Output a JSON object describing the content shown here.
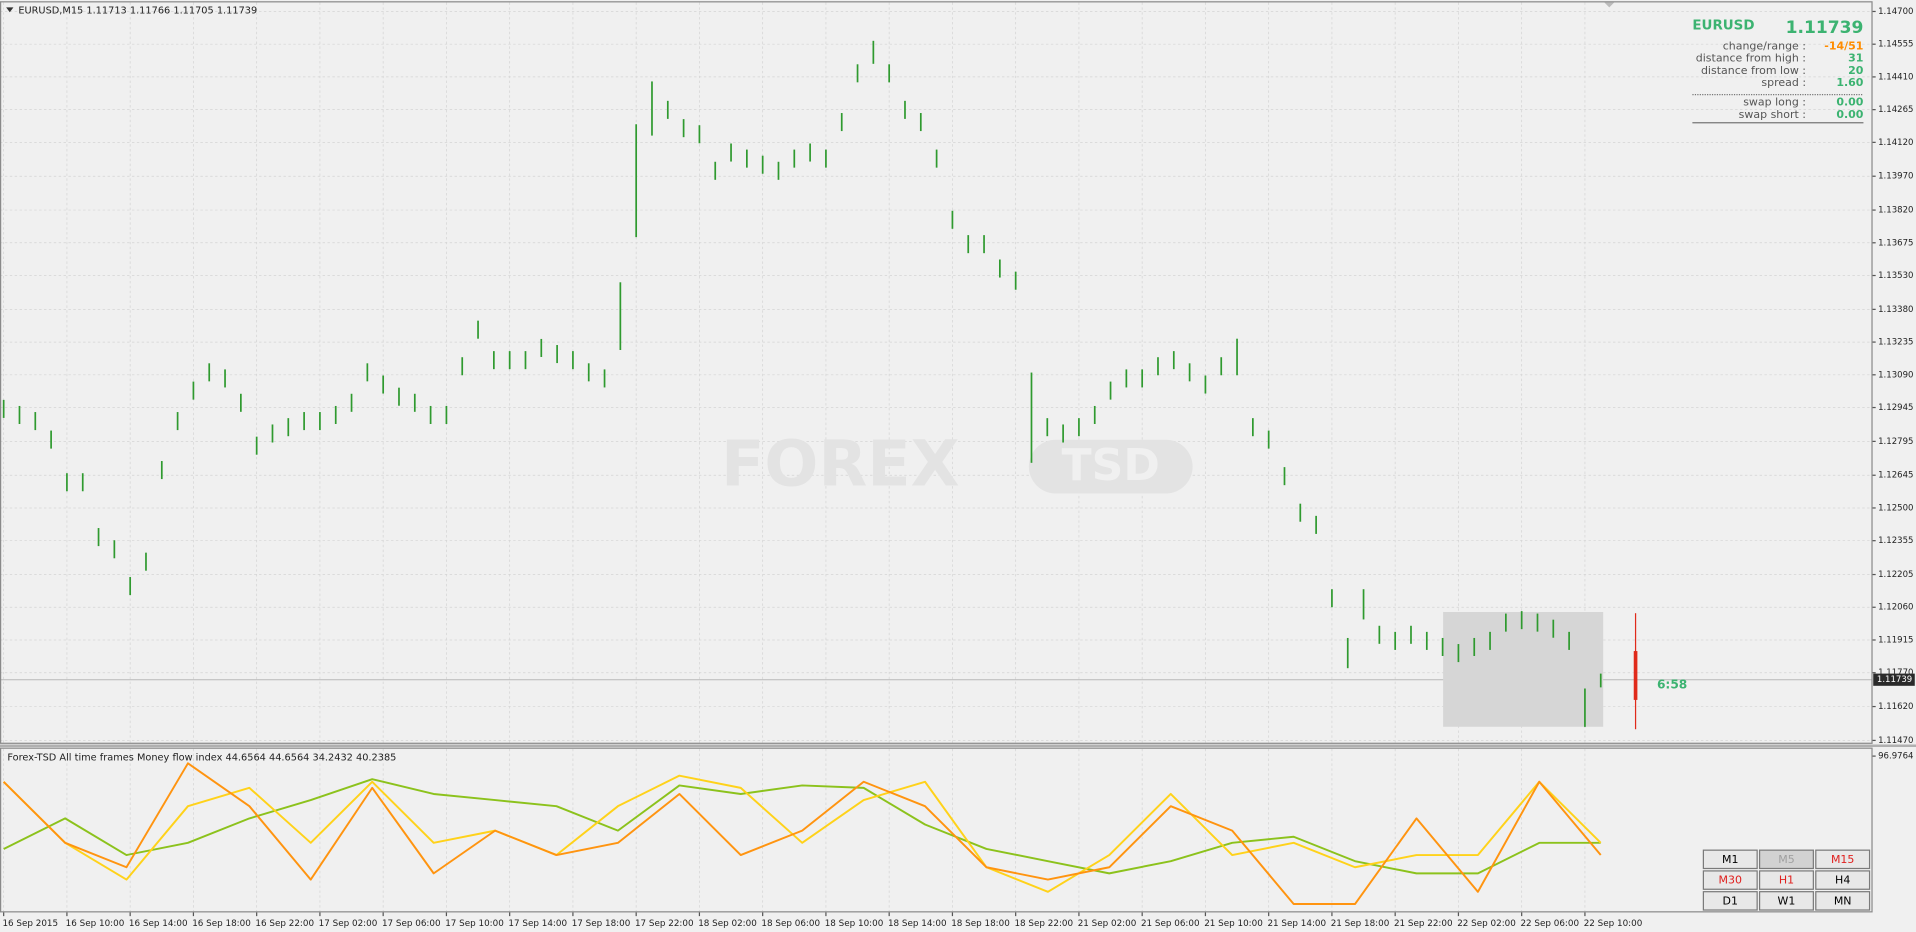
{
  "chart_data": [
    {
      "type": "ohlc",
      "title": "EURUSD,M15  1.11713 1.11766 1.11705 1.11739",
      "color": "#2f9a2f",
      "grid": true,
      "categories": [
        "16 Sep 2015",
        null,
        null,
        null,
        "16 Sep 10:00",
        null,
        null,
        null,
        "16 Sep 14:00",
        null,
        null,
        null,
        "16 Sep 18:00",
        null,
        null,
        null,
        "16 Sep 22:00",
        null,
        null,
        null,
        "17 Sep 02:00",
        null,
        null,
        null,
        "17 Sep 06:00",
        null,
        null,
        null,
        "17 Sep 10:00",
        null,
        null,
        null,
        "17 Sep 14:00",
        null,
        null,
        null,
        "17 Sep 18:00",
        null,
        null,
        null,
        "17 Sep 22:00",
        null,
        null,
        null,
        "18 Sep 02:00",
        null,
        null,
        null,
        "18 Sep 06:00",
        null,
        null,
        null,
        "18 Sep 10:00",
        null,
        null,
        null,
        "18 Sep 14:00",
        null,
        null,
        null,
        "18 Sep 18:00",
        null,
        null,
        null,
        "18 Sep 22:00",
        null,
        null,
        null,
        "21 Sep 02:00",
        null,
        null,
        null,
        "21 Sep 06:00",
        null,
        null,
        null,
        "21 Sep 10:00",
        null,
        null,
        null,
        "21 Sep 14:00",
        null,
        null,
        null,
        "21 Sep 18:00",
        null,
        null,
        null,
        "21 Sep 22:00",
        null,
        null,
        null,
        "22 Sep 02:00",
        null,
        null,
        null,
        "22 Sep 06:00",
        null,
        null,
        null,
        "22 Sep 10:00",
        null
      ],
      "high": [
        1.12979,
        1.12952,
        1.12925,
        1.12843,
        1.12654,
        1.12654,
        1.12411,
        1.12357,
        1.12194,
        1.12302,
        1.12708,
        1.12925,
        1.1306,
        1.13141,
        1.13114,
        1.13006,
        1.12816,
        1.1287,
        1.12898,
        1.12925,
        1.12925,
        1.12952,
        1.13006,
        1.13141,
        1.13087,
        1.13033,
        1.13006,
        1.12952,
        1.12952,
        1.13168,
        1.1333,
        1.13195,
        1.13195,
        1.13195,
        1.13249,
        1.13222,
        1.13195,
        1.13141,
        1.13114,
        1.135,
        1.142,
        1.1439,
        1.14304,
        1.14223,
        1.14196,
        1.14034,
        1.14115,
        1.14088,
        1.14061,
        1.14034,
        1.14088,
        1.14115,
        1.14088,
        1.1425,
        1.14466,
        1.1457,
        1.14466,
        1.14304,
        1.1425,
        1.14088,
        1.13817,
        1.13709,
        1.13709,
        1.13601,
        1.13547,
        1.131,
        1.12898,
        1.1287,
        1.12898,
        1.12952,
        1.1306,
        1.13114,
        1.13114,
        1.13168,
        1.13195,
        1.13141,
        1.13087,
        1.13168,
        1.1325,
        1.12898,
        1.12843,
        1.12681,
        1.12519,
        1.12465,
        1.1214,
        1.11924,
        1.1214,
        1.11978,
        1.11951,
        1.11978,
        1.11951,
        1.11924,
        1.11897,
        1.11924,
        1.11951,
        1.12032,
        1.12043,
        1.12032,
        1.12005,
        1.11951,
        1.117,
        1.11766
      ],
      "low": [
        1.12899,
        1.12872,
        1.12845,
        1.12763,
        1.12574,
        1.12574,
        1.12331,
        1.12277,
        1.12114,
        1.12222,
        1.12628,
        1.12845,
        1.1298,
        1.13061,
        1.13034,
        1.12926,
        1.12736,
        1.1279,
        1.12818,
        1.12845,
        1.12845,
        1.12872,
        1.12926,
        1.13061,
        1.13007,
        1.12953,
        1.12926,
        1.12872,
        1.12872,
        1.13088,
        1.1325,
        1.13115,
        1.13115,
        1.13115,
        1.13169,
        1.13142,
        1.13115,
        1.13061,
        1.13034,
        1.132,
        1.137,
        1.1415,
        1.14224,
        1.14143,
        1.14116,
        1.13954,
        1.14035,
        1.14008,
        1.13981,
        1.13954,
        1.14008,
        1.14035,
        1.14008,
        1.1417,
        1.14386,
        1.14468,
        1.14386,
        1.14224,
        1.1417,
        1.14008,
        1.13737,
        1.13629,
        1.13629,
        1.13521,
        1.13467,
        1.127,
        1.12818,
        1.1279,
        1.12818,
        1.12872,
        1.1298,
        1.13034,
        1.13034,
        1.13088,
        1.13115,
        1.13061,
        1.13007,
        1.13088,
        1.13088,
        1.12818,
        1.12763,
        1.12601,
        1.12439,
        1.12385,
        1.1206,
        1.1179,
        1.12006,
        1.11898,
        1.11871,
        1.11898,
        1.11871,
        1.11844,
        1.11817,
        1.11844,
        1.11871,
        1.11952,
        1.11963,
        1.11952,
        1.11925,
        1.11871,
        1.1153,
        1.11705
      ],
      "current_price": 1.11739,
      "ylim": [
        1.1146,
        1.1474
      ],
      "yticks": [
        {
          "value": 1.147,
          "label": "1.14700"
        },
        {
          "value": 1.14555,
          "label": "1.14555"
        },
        {
          "value": 1.1441,
          "label": "1.14410"
        },
        {
          "value": 1.14265,
          "label": "1.14265"
        },
        {
          "value": 1.1412,
          "label": "1.14120"
        },
        {
          "value": 1.1397,
          "label": "1.13970"
        },
        {
          "value": 1.1382,
          "label": "1.13820"
        },
        {
          "value": 1.13675,
          "label": "1.13675"
        },
        {
          "value": 1.1353,
          "label": "1.13530"
        },
        {
          "value": 1.1338,
          "label": "1.13380"
        },
        {
          "value": 1.13235,
          "label": "1.13235"
        },
        {
          "value": 1.1309,
          "label": "1.13090"
        },
        {
          "value": 1.12945,
          "label": "1.12945"
        },
        {
          "value": 1.12795,
          "label": "1.12795"
        },
        {
          "value": 1.12645,
          "label": "1.12645"
        },
        {
          "value": 1.125,
          "label": "1.12500"
        },
        {
          "value": 1.12355,
          "label": "1.12355"
        },
        {
          "value": 1.12205,
          "label": "1.12205"
        },
        {
          "value": 1.1206,
          "label": "1.12060"
        },
        {
          "value": 1.11915,
          "label": "1.11915"
        },
        {
          "value": 1.1177,
          "label": "1.11770"
        },
        {
          "value": 1.1162,
          "label": "1.11620"
        },
        {
          "value": 1.1147,
          "label": "1.11470"
        }
      ]
    },
    {
      "type": "line",
      "title": "Forex-TSD All time frames Money flow index 44.6564 44.6564 34.2432 40.2385",
      "series": [
        {
          "color": "#8cc21c",
          "values": [
            38.5,
            57.7,
            34.6,
            42.3,
            57.7,
            69.3,
            82.4,
            73.1,
            69.3,
            65.4,
            50.0,
            78.5,
            73.1,
            78.5,
            77.0,
            53.9,
            38.5,
            30.8,
            23.1,
            30.8,
            42.3,
            46.2,
            30.8,
            23.1,
            23.1,
            42.3,
            42.3
          ]
        },
        {
          "color": "#ffd21a",
          "values": [
            80.8,
            42.3,
            19.2,
            65.4,
            77.0,
            42.3,
            80.8,
            42.3,
            50.0,
            34.6,
            65.4,
            84.7,
            77.0,
            42.3,
            69.3,
            80.8,
            26.9,
            11.5,
            34.6,
            73.1,
            34.6,
            42.3,
            26.9,
            34.6,
            34.6,
            80.8,
            42.3
          ]
        },
        {
          "color": "#ff9410",
          "values": [
            80.8,
            42.3,
            26.9,
            92.4,
            65.4,
            19.2,
            77.0,
            23.1,
            50.0,
            34.6,
            42.3,
            73.1,
            34.6,
            50.0,
            80.8,
            65.4,
            26.9,
            19.2,
            26.9,
            65.4,
            50.0,
            3.8,
            3.8,
            57.7,
            11.5,
            80.8,
            34.6
          ]
        }
      ],
      "ylim": [
        0,
        96.9764
      ],
      "yticks": [
        96.9764
      ]
    }
  ],
  "info_panel": {
    "symbol": "EURUSD",
    "price": "1.11739",
    "rows": [
      {
        "label": "change/range :",
        "value": "-14/51",
        "color": "#ff8c00"
      },
      {
        "label": "distance from high :",
        "value": "31",
        "color": "#3cb371"
      },
      {
        "label": "distance from low :",
        "value": "20",
        "color": "#3cb371"
      },
      {
        "label": "spread :",
        "value": "1.60",
        "color": "#3cb371"
      },
      {
        "label": "swap long :",
        "value": "0.00",
        "color": "#3cb371"
      },
      {
        "label": "swap short :",
        "value": "0.00",
        "color": "#3cb371"
      }
    ]
  },
  "timer": "6:58",
  "watermark": [
    "FOREX",
    "TSD"
  ],
  "timeframes": [
    {
      "label": "M1",
      "color": "#000000"
    },
    {
      "label": "M5",
      "color": "#a0a0a0"
    },
    {
      "label": "M15",
      "color": "#e0201e"
    },
    {
      "label": "M30",
      "color": "#e0201e"
    },
    {
      "label": "H1",
      "color": "#e0201e"
    },
    {
      "label": "H4",
      "color": "#000000"
    },
    {
      "label": "D1",
      "color": "#000000"
    },
    {
      "label": "W1",
      "color": "#000000"
    },
    {
      "label": "MN",
      "color": "#000000"
    }
  ]
}
